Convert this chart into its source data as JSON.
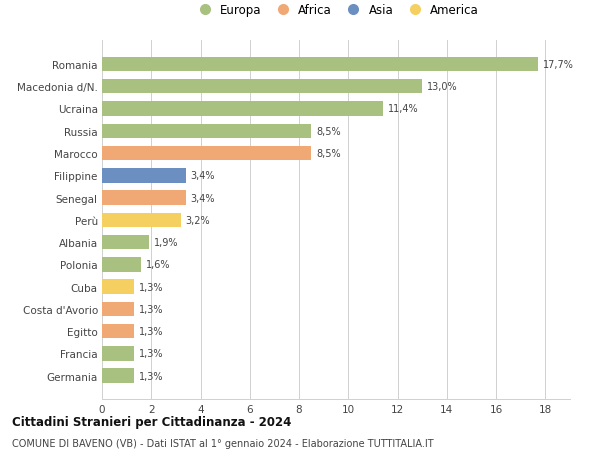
{
  "categories": [
    "Germania",
    "Francia",
    "Egitto",
    "Costa d'Avorio",
    "Cuba",
    "Polonia",
    "Albania",
    "Perù",
    "Senegal",
    "Filippine",
    "Marocco",
    "Russia",
    "Ucraina",
    "Macedonia d/N.",
    "Romania"
  ],
  "values": [
    1.3,
    1.3,
    1.3,
    1.3,
    1.3,
    1.6,
    1.9,
    3.2,
    3.4,
    3.4,
    8.5,
    8.5,
    11.4,
    13.0,
    17.7
  ],
  "labels": [
    "1,3%",
    "1,3%",
    "1,3%",
    "1,3%",
    "1,3%",
    "1,6%",
    "1,9%",
    "3,2%",
    "3,4%",
    "3,4%",
    "8,5%",
    "8,5%",
    "11,4%",
    "13,0%",
    "17,7%"
  ],
  "colors": [
    "#a8c080",
    "#a8c080",
    "#f0a875",
    "#f0a875",
    "#f5d060",
    "#a8c080",
    "#a8c080",
    "#f5d060",
    "#f0a875",
    "#6b8fc0",
    "#f0a875",
    "#a8c080",
    "#a8c080",
    "#a8c080",
    "#a8c080"
  ],
  "legend": [
    {
      "label": "Europa",
      "color": "#a8c080"
    },
    {
      "label": "Africa",
      "color": "#f0a875"
    },
    {
      "label": "Asia",
      "color": "#6b8fc0"
    },
    {
      "label": "America",
      "color": "#f5d060"
    }
  ],
  "title": "Cittadini Stranieri per Cittadinanza - 2024",
  "subtitle": "COMUNE DI BAVENO (VB) - Dati ISTAT al 1° gennaio 2024 - Elaborazione TUTTITALIA.IT",
  "xlim": [
    0,
    19
  ],
  "xticks": [
    0,
    2,
    4,
    6,
    8,
    10,
    12,
    14,
    16,
    18
  ],
  "background_color": "#ffffff",
  "grid_color": "#d0d0d0"
}
